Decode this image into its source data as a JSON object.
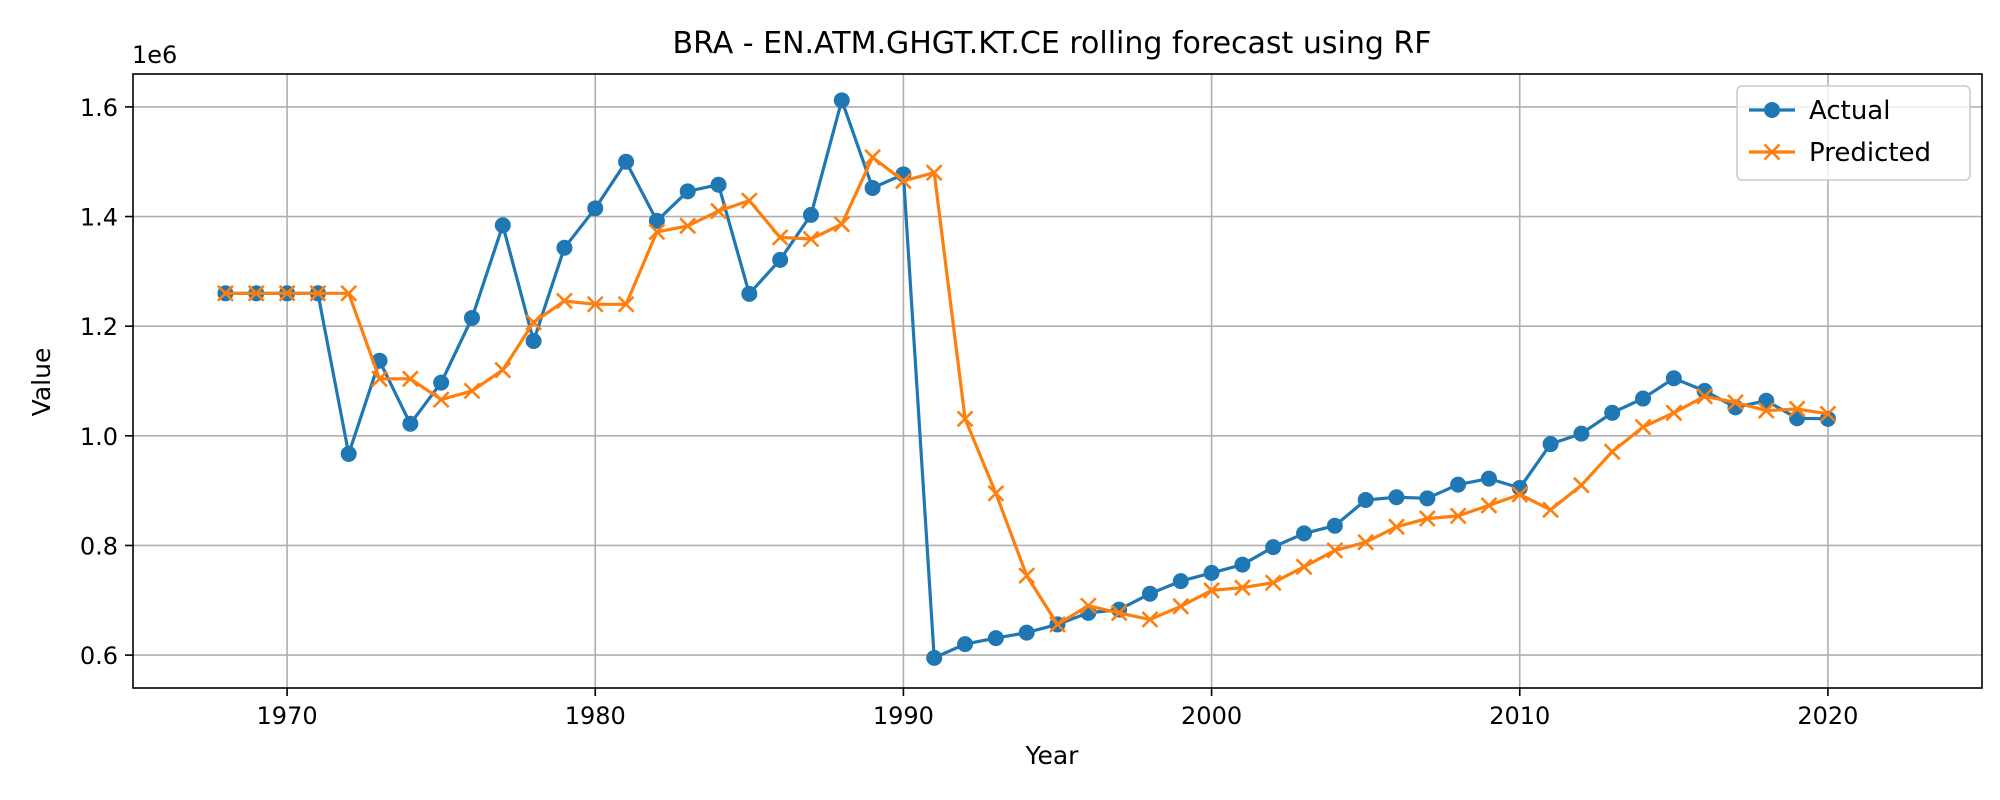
{
  "chart_data": {
    "type": "line",
    "title": "BRA - EN.ATM.GHGT.KT.CE rolling forecast using RF",
    "xlabel": "Year",
    "ylabel": "Value",
    "y_offset_label": "1e6",
    "xlim": [
      1965,
      2025
    ],
    "ylim": [
      0.54,
      1.66
    ],
    "x_ticks": [
      1970,
      1980,
      1990,
      2000,
      2010,
      2020
    ],
    "y_ticks": [
      0.6,
      0.8,
      1.0,
      1.2,
      1.4,
      1.6
    ],
    "y_tick_labels": [
      "0.6",
      "0.8",
      "1.0",
      "1.2",
      "1.4",
      "1.6"
    ],
    "grid": true,
    "legend_position": "top-right",
    "x": [
      1968,
      1969,
      1970,
      1971,
      1972,
      1973,
      1974,
      1975,
      1976,
      1977,
      1978,
      1979,
      1980,
      1981,
      1982,
      1983,
      1984,
      1985,
      1986,
      1987,
      1988,
      1989,
      1990,
      1991,
      1992,
      1993,
      1994,
      1995,
      1996,
      1997,
      1998,
      1999,
      2000,
      2001,
      2002,
      2003,
      2004,
      2005,
      2006,
      2007,
      2008,
      2009,
      2010,
      2011,
      2012,
      2013,
      2014,
      2015,
      2016,
      2017,
      2018,
      2019,
      2020
    ],
    "series": [
      {
        "name": "Actual",
        "color": "#1f77b4",
        "marker": "circle",
        "values": [
          1.26,
          1.26,
          1.26,
          1.26,
          0.967,
          1.137,
          1.022,
          1.097,
          1.215,
          1.384,
          1.173,
          1.343,
          1.415,
          1.5,
          1.392,
          1.446,
          1.458,
          1.259,
          1.321,
          1.403,
          1.612,
          1.452,
          1.477,
          0.595,
          0.62,
          0.631,
          0.641,
          0.656,
          0.677,
          0.683,
          0.712,
          0.735,
          0.75,
          0.765,
          0.797,
          0.822,
          0.836,
          0.883,
          0.888,
          0.886,
          0.911,
          0.922,
          0.905,
          0.985,
          1.004,
          1.042,
          1.068,
          1.105,
          1.082,
          1.052,
          1.064,
          1.032,
          1.031
        ]
      },
      {
        "name": "Predicted",
        "color": "#ff7f0e",
        "marker": "x",
        "values": [
          1.26,
          1.26,
          1.26,
          1.26,
          1.26,
          1.104,
          1.104,
          1.066,
          1.082,
          1.12,
          1.207,
          1.246,
          1.24,
          1.24,
          1.372,
          1.383,
          1.41,
          1.429,
          1.362,
          1.359,
          1.386,
          1.508,
          1.465,
          1.48,
          1.031,
          0.895,
          0.745,
          0.656,
          0.69,
          0.677,
          0.665,
          0.689,
          0.718,
          0.723,
          0.732,
          0.761,
          0.791,
          0.806,
          0.834,
          0.849,
          0.854,
          0.873,
          0.893,
          0.865,
          0.91,
          0.971,
          1.016,
          1.042,
          1.072,
          1.061,
          1.046,
          1.049,
          1.04
        ]
      }
    ]
  }
}
